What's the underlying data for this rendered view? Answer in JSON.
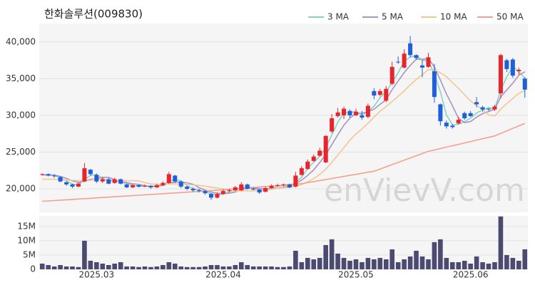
{
  "chart_data": [
    {
      "type": "candlestick",
      "title": "한화솔루션(009830)",
      "watermark": "enVievV.com",
      "up_color": "#e8242c",
      "down_color": "#1f5fd8",
      "grid": true,
      "legend": "upper right",
      "ylim": [
        16800,
        42500
      ],
      "yticks": [
        {
          "value": 20000,
          "label": "20,000"
        },
        {
          "value": 25000,
          "label": "25,000"
        },
        {
          "value": 30000,
          "label": "30,000"
        },
        {
          "value": 35000,
          "label": "35,000"
        },
        {
          "value": 40000,
          "label": "40,000"
        }
      ],
      "open": [
        21900,
        22000,
        21800,
        21600,
        20900,
        20600,
        20300,
        21000,
        22600,
        21900,
        21000,
        21300,
        20800,
        21300,
        20600,
        20200,
        20500,
        20300,
        20400,
        20200,
        20500,
        20800,
        21800,
        21000,
        20300,
        20000,
        19800,
        19700,
        19300,
        18800,
        19300,
        19700,
        19800,
        19800,
        20600,
        20000,
        19900,
        19600,
        20100,
        20400,
        20500,
        20600,
        20300,
        21900,
        22700,
        23800,
        24500,
        23600,
        27800,
        29900,
        30000,
        30600,
        30000,
        30000,
        29800,
        33300,
        32800,
        32000,
        34300,
        37300,
        36500,
        39800,
        38200,
        36800,
        36600,
        36000,
        31500,
        29000,
        28600,
        28900,
        30300,
        30300,
        31800,
        31100,
        30900,
        30800,
        33000,
        37500,
        37600,
        36000,
        35000
      ],
      "high": [
        22100,
        22100,
        22000,
        21700,
        21000,
        20700,
        20900,
        23500,
        22700,
        22100,
        21600,
        21500,
        21500,
        21400,
        20700,
        20700,
        20600,
        20600,
        20500,
        20700,
        21000,
        22300,
        21900,
        21100,
        20400,
        20200,
        20000,
        19800,
        19400,
        19500,
        19900,
        20000,
        20400,
        20900,
        20700,
        20200,
        20000,
        20300,
        20600,
        20700,
        20700,
        20700,
        22300,
        23100,
        24000,
        24700,
        25600,
        27300,
        30200,
        31000,
        31200,
        30800,
        30900,
        30600,
        31600,
        33700,
        33600,
        34000,
        37300,
        38000,
        39000,
        40800,
        38300,
        37500,
        38500,
        37000,
        31600,
        29300,
        28800,
        29800,
        30500,
        30600,
        32500,
        31300,
        31000,
        31400,
        38400,
        37700,
        37800,
        36500,
        35200
      ],
      "low": [
        21800,
        21700,
        21500,
        20900,
        20400,
        20100,
        20200,
        20900,
        21800,
        20800,
        20800,
        20600,
        20700,
        20600,
        20100,
        20100,
        20200,
        20200,
        20000,
        20100,
        20400,
        20700,
        20800,
        20100,
        19800,
        19600,
        19500,
        19200,
        18500,
        18700,
        19200,
        19500,
        19700,
        19700,
        19900,
        19800,
        19300,
        19500,
        20000,
        20300,
        20300,
        20100,
        20200,
        21800,
        22600,
        23700,
        24400,
        23500,
        27600,
        29700,
        29500,
        29700,
        29900,
        29400,
        29600,
        32200,
        32600,
        31800,
        34100,
        37000,
        36400,
        37900,
        37600,
        35200,
        36500,
        31700,
        28600,
        28200,
        28200,
        28800,
        29400,
        29800,
        31100,
        30500,
        30600,
        30600,
        32300,
        35900,
        35100,
        35500,
        32400
      ],
      "close": [
        22000,
        21800,
        21700,
        21000,
        20600,
        20300,
        20700,
        22800,
        22000,
        21000,
        21300,
        20700,
        21300,
        20700,
        20200,
        20500,
        20300,
        20400,
        20200,
        20500,
        20800,
        22000,
        21000,
        20300,
        20000,
        19800,
        19700,
        19400,
        18800,
        19300,
        19700,
        19800,
        20200,
        20600,
        20000,
        19900,
        19500,
        20100,
        20400,
        20500,
        20600,
        20200,
        21800,
        22800,
        23700,
        24400,
        25200,
        27200,
        29600,
        30400,
        30900,
        30000,
        30500,
        29700,
        31300,
        32700,
        33300,
        33600,
        36600,
        37200,
        38400,
        38200,
        37800,
        36500,
        37900,
        32500,
        29200,
        28500,
        28400,
        29400,
        29600,
        29900,
        31500,
        30800,
        30800,
        31200,
        38200,
        36300,
        35400,
        36200,
        33500
      ],
      "series": [
        {
          "name": "3 MA",
          "color": "#86d3c6",
          "values": [
            21900,
            21900,
            21833,
            21500,
            21100,
            20633,
            20533,
            21267,
            21833,
            21933,
            21433,
            21000,
            21100,
            20900,
            20733,
            20467,
            20333,
            20400,
            20300,
            20367,
            20500,
            21100,
            21267,
            21100,
            20433,
            20033,
            19833,
            19633,
            19300,
            19167,
            19267,
            19600,
            19900,
            20200,
            20267,
            20167,
            19800,
            19833,
            20000,
            20333,
            20500,
            20433,
            20867,
            21600,
            22767,
            23633,
            24433,
            25600,
            27333,
            29067,
            30300,
            30433,
            30467,
            30067,
            30500,
            31233,
            32433,
            33200,
            34500,
            35800,
            37400,
            37933,
            38133,
            37500,
            37400,
            35633,
            33200,
            30067,
            28700,
            28767,
            29133,
            29633,
            30333,
            30733,
            31033,
            30933,
            33400,
            35233,
            36633,
            35967,
            35033
          ]
        },
        {
          "name": "5 MA",
          "color": "#a893c4",
          "values": [
            21900,
            21900,
            21850,
            21700,
            21420,
            21080,
            20860,
            21080,
            21280,
            21360,
            21560,
            21560,
            21260,
            21000,
            20840,
            20680,
            20600,
            20420,
            20320,
            20380,
            20440,
            20780,
            20900,
            20920,
            20820,
            20620,
            20160,
            19840,
            19540,
            19400,
            19380,
            19400,
            19560,
            19920,
            20060,
            20100,
            20040,
            20020,
            19980,
            20080,
            20220,
            20360,
            20700,
            21180,
            21820,
            22580,
            23580,
            24660,
            26020,
            27360,
            28660,
            29620,
            30280,
            30300,
            30480,
            30840,
            31500,
            32120,
            33500,
            34680,
            35820,
            36800,
            37640,
            37620,
            37760,
            36580,
            34780,
            32920,
            31300,
            29600,
            29020,
            29160,
            29760,
            30240,
            30520,
            30840,
            32500,
            33460,
            34380,
            35460,
            35920
          ]
        },
        {
          "name": "10 MA",
          "color": "#f3c693",
          "values": [
            21300,
            21300,
            21300,
            21250,
            21200,
            21150,
            21100,
            21100,
            21150,
            21390,
            21320,
            21210,
            21170,
            21140,
            21100,
            21120,
            21080,
            20840,
            20660,
            20610,
            20560,
            20690,
            20660,
            20620,
            20600,
            20530,
            20470,
            20370,
            20230,
            20110,
            20000,
            19780,
            19700,
            19730,
            19730,
            19740,
            19720,
            19790,
            19950,
            20070,
            20160,
            20200,
            20360,
            20580,
            20950,
            21400,
            21970,
            22680,
            23600,
            24590,
            25620,
            26600,
            27470,
            28160,
            28920,
            29750,
            30560,
            31200,
            31900,
            32580,
            33330,
            34150,
            34880,
            35560,
            36220,
            36200,
            35790,
            35280,
            34460,
            33680,
            32800,
            31970,
            31340,
            30770,
            30060,
            29930,
            30830,
            31610,
            32310,
            32990,
            33380
          ]
        },
        {
          "name": "50 MA",
          "color": "#f2a28c",
          "values": [
            18300,
            18350,
            18400,
            18460,
            18510,
            18560,
            18610,
            18660,
            18710,
            18770,
            18820,
            18870,
            18920,
            18970,
            19020,
            19080,
            19130,
            19180,
            19230,
            19280,
            19330,
            19390,
            19440,
            19490,
            19540,
            19590,
            19640,
            19700,
            19750,
            19800,
            19860,
            19930,
            19990,
            20060,
            20120,
            20190,
            20250,
            20310,
            20380,
            20440,
            20510,
            20570,
            20640,
            20700,
            20840,
            20980,
            21130,
            21270,
            21410,
            21550,
            21690,
            21830,
            21970,
            22110,
            22260,
            22400,
            22700,
            23000,
            23300,
            23600,
            23900,
            24200,
            24500,
            24800,
            25100,
            25290,
            25480,
            25670,
            25860,
            26050,
            26250,
            26440,
            26630,
            26820,
            27010,
            27200,
            27540,
            27880,
            28220,
            28560,
            28900
          ]
        }
      ]
    },
    {
      "type": "bar",
      "color": "#4b4a70",
      "grid": true,
      "ylim": [
        0,
        18.7
      ],
      "yticks": [
        0,
        {
          "value": 5,
          "label": "5M"
        },
        {
          "value": 10,
          "label": "10M"
        },
        {
          "value": 15,
          "label": "15M"
        }
      ],
      "categories": [
        null,
        null,
        null,
        null,
        null,
        null,
        null,
        null,
        null,
        "2025.03",
        null,
        null,
        null,
        null,
        null,
        null,
        null,
        null,
        null,
        null,
        null,
        null,
        null,
        null,
        null,
        null,
        null,
        null,
        null,
        null,
        "2025.04",
        null,
        null,
        null,
        null,
        null,
        null,
        null,
        null,
        null,
        null,
        null,
        null,
        null,
        null,
        null,
        null,
        null,
        null,
        null,
        null,
        null,
        "2025.05",
        null,
        null,
        null,
        null,
        null,
        null,
        null,
        null,
        null,
        null,
        null,
        null,
        null,
        null,
        null,
        null,
        null,
        null,
        "2025.06",
        null,
        null,
        null,
        null,
        null,
        null,
        null,
        null,
        null
      ],
      "values": [
        2.0,
        1.5,
        1.0,
        1.5,
        1.0,
        1.0,
        0.8,
        10.0,
        3.0,
        2.5,
        2.0,
        1.5,
        2.0,
        2.5,
        1.0,
        1.0,
        0.8,
        1.0,
        0.8,
        1.0,
        1.5,
        2.5,
        2.0,
        1.0,
        0.8,
        0.8,
        0.8,
        1.0,
        1.5,
        1.5,
        1.0,
        1.0,
        1.5,
        2.5,
        1.5,
        1.0,
        1.0,
        1.0,
        1.0,
        0.8,
        0.8,
        1.0,
        6.5,
        2.5,
        4.0,
        3.5,
        4.0,
        8.5,
        10.5,
        5.5,
        4.0,
        3.0,
        3.5,
        2.5,
        4.0,
        3.5,
        4.0,
        3.5,
        7.0,
        2.5,
        3.5,
        4.5,
        6.5,
        4.5,
        3.5,
        9.5,
        10.5,
        4.0,
        2.5,
        2.5,
        3.0,
        2.0,
        4.5,
        2.5,
        2.0,
        2.5,
        18.5,
        5.0,
        4.0,
        3.0,
        7.0
      ]
    }
  ]
}
